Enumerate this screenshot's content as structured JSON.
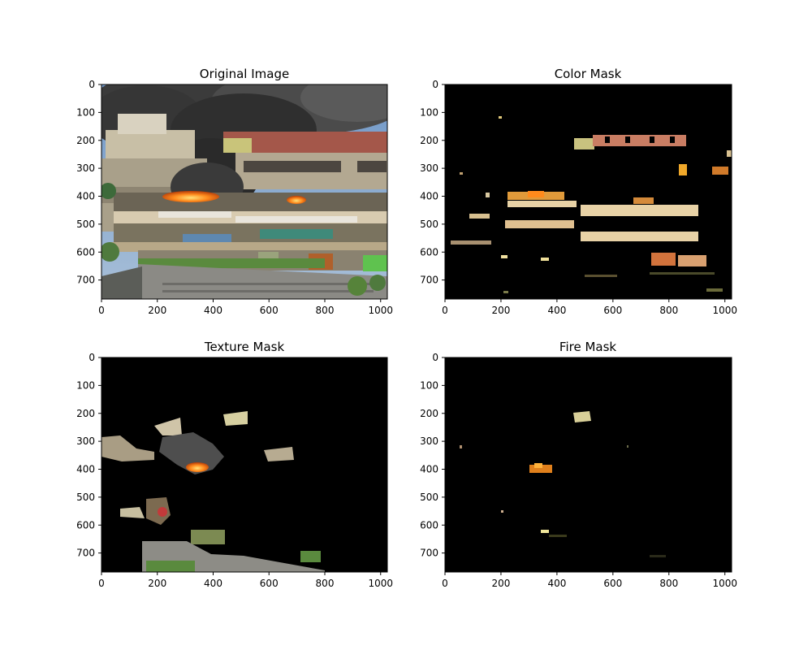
{
  "chart_data": [
    {
      "type": "image",
      "panel": "original",
      "title": "Original Image",
      "x_ticks": [
        "0",
        "200",
        "400",
        "600",
        "800",
        "1000"
      ],
      "y_ticks": [
        "0",
        "100",
        "200",
        "300",
        "400",
        "500",
        "600",
        "700"
      ],
      "xlim": [
        0,
        1024
      ],
      "ylim": [
        768,
        0
      ]
    },
    {
      "type": "image",
      "panel": "color-mask",
      "title": "Color Mask",
      "x_ticks": [
        "0",
        "200",
        "400",
        "600",
        "800",
        "1000"
      ],
      "y_ticks": [
        "0",
        "100",
        "200",
        "300",
        "400",
        "500",
        "600",
        "700"
      ],
      "xlim": [
        0,
        1024
      ],
      "ylim": [
        768,
        0
      ]
    },
    {
      "type": "image",
      "panel": "texture-mask",
      "title": "Texture Mask",
      "x_ticks": [
        "0",
        "200",
        "400",
        "600",
        "800",
        "1000"
      ],
      "y_ticks": [
        "0",
        "100",
        "200",
        "300",
        "400",
        "500",
        "600",
        "700"
      ],
      "xlim": [
        0,
        1024
      ],
      "ylim": [
        768,
        0
      ]
    },
    {
      "type": "image",
      "panel": "fire-mask",
      "title": "Fire Mask",
      "x_ticks": [
        "0",
        "200",
        "400",
        "600",
        "800",
        "1000"
      ],
      "y_ticks": [
        "0",
        "100",
        "200",
        "300",
        "400",
        "500",
        "600",
        "700"
      ],
      "xlim": [
        0,
        1024
      ],
      "ylim": [
        768,
        0
      ]
    }
  ]
}
